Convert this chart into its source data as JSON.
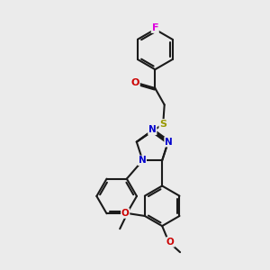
{
  "bg": "#ebebeb",
  "bond_color": "#1a1a1a",
  "atom_colors": {
    "F": "#dd00dd",
    "O": "#cc0000",
    "N": "#0000cc",
    "S": "#999900",
    "C": "#1a1a1a"
  },
  "lw": 1.5,
  "fs": 7.5,
  "r_hex": 0.75,
  "dbo": 0.065
}
